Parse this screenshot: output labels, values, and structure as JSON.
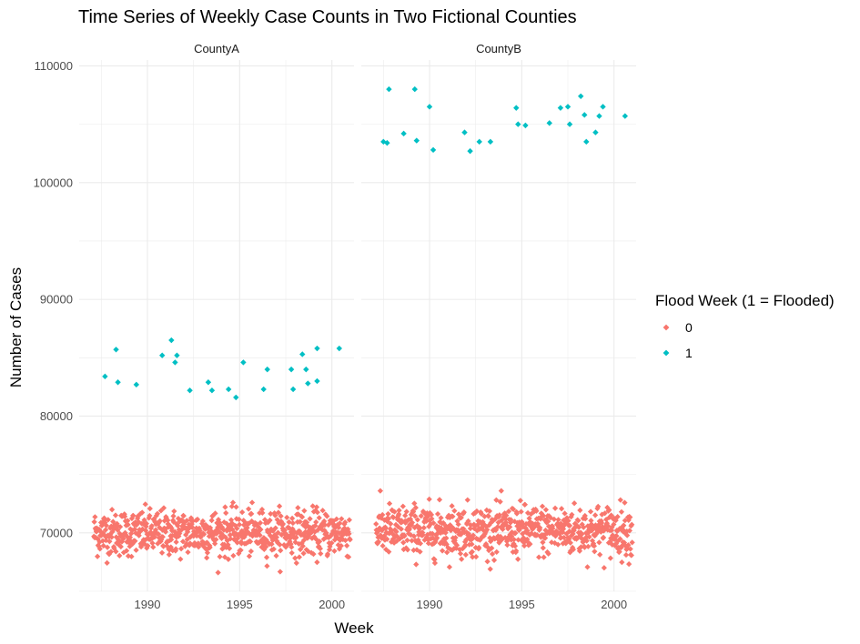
{
  "chart_data": {
    "type": "scatter",
    "title": "Time Series of Weekly Case Counts in Two Fictional Counties",
    "xlabel": "Week",
    "ylabel": "Number of Cases",
    "xlim": [
      1986.3,
      2001.2
    ],
    "ylim": [
      65000,
      110500
    ],
    "x_ticks": [
      1990,
      1995,
      2000
    ],
    "x_tick_labels": [
      "1990",
      "1995",
      "2000"
    ],
    "y_ticks": [
      70000,
      80000,
      90000,
      100000,
      110000
    ],
    "y_tick_labels": [
      "70000",
      "80000",
      "90000",
      "100000",
      "110000"
    ],
    "grid": true,
    "facets": [
      "CountyA",
      "CountyB"
    ],
    "legend": {
      "title": "Flood Week (1 = Flooded)",
      "position": "right",
      "entries": [
        {
          "label": "0",
          "color": "#F8766D"
        },
        {
          "label": "1",
          "color": "#00BFC4"
        }
      ]
    },
    "baseline_note": "Non-flooded weeks (0) appear as a dense band of weekly points between approximately 66500 and 73500 cases across 1987-2001 in both counties.",
    "non_flood_band": {
      "CountyA": {
        "x_range": [
          1987.1,
          2001.0
        ],
        "y_range": [
          66600,
          72600
        ],
        "center": 70000
      },
      "CountyB": {
        "x_range": [
          1987.1,
          2001.0
        ],
        "y_range": [
          66900,
          73600
        ],
        "center": 70200
      }
    },
    "flood_points": {
      "CountyA": [
        {
          "x": 1987.7,
          "y": 83400
        },
        {
          "x": 1988.3,
          "y": 85700
        },
        {
          "x": 1988.4,
          "y": 82900
        },
        {
          "x": 1989.4,
          "y": 82700
        },
        {
          "x": 1990.8,
          "y": 85200
        },
        {
          "x": 1991.3,
          "y": 86500
        },
        {
          "x": 1991.5,
          "y": 84600
        },
        {
          "x": 1991.6,
          "y": 85200
        },
        {
          "x": 1992.3,
          "y": 82200
        },
        {
          "x": 1993.3,
          "y": 82900
        },
        {
          "x": 1993.5,
          "y": 82200
        },
        {
          "x": 1994.4,
          "y": 82300
        },
        {
          "x": 1994.8,
          "y": 81600
        },
        {
          "x": 1995.2,
          "y": 84600
        },
        {
          "x": 1996.3,
          "y": 82300
        },
        {
          "x": 1996.5,
          "y": 84000
        },
        {
          "x": 1997.8,
          "y": 84000
        },
        {
          "x": 1997.9,
          "y": 82300
        },
        {
          "x": 1998.4,
          "y": 85300
        },
        {
          "x": 1998.6,
          "y": 84000
        },
        {
          "x": 1998.7,
          "y": 82800
        },
        {
          "x": 1999.2,
          "y": 85800
        },
        {
          "x": 1999.2,
          "y": 83000
        },
        {
          "x": 2000.4,
          "y": 85800
        }
      ],
      "CountyB": [
        {
          "x": 1987.5,
          "y": 103500
        },
        {
          "x": 1987.7,
          "y": 103400
        },
        {
          "x": 1987.8,
          "y": 108000
        },
        {
          "x": 1988.6,
          "y": 104200
        },
        {
          "x": 1989.2,
          "y": 108000
        },
        {
          "x": 1989.3,
          "y": 103600
        },
        {
          "x": 1990.0,
          "y": 106500
        },
        {
          "x": 1990.2,
          "y": 102800
        },
        {
          "x": 1991.9,
          "y": 104300
        },
        {
          "x": 1992.2,
          "y": 102700
        },
        {
          "x": 1992.7,
          "y": 103500
        },
        {
          "x": 1993.3,
          "y": 103500
        },
        {
          "x": 1994.7,
          "y": 106400
        },
        {
          "x": 1994.8,
          "y": 105000
        },
        {
          "x": 1995.2,
          "y": 104900
        },
        {
          "x": 1996.5,
          "y": 105100
        },
        {
          "x": 1997.1,
          "y": 106400
        },
        {
          "x": 1997.5,
          "y": 106500
        },
        {
          "x": 1997.6,
          "y": 105000
        },
        {
          "x": 1998.2,
          "y": 107400
        },
        {
          "x": 1998.4,
          "y": 105800
        },
        {
          "x": 1998.5,
          "y": 103500
        },
        {
          "x": 1999.0,
          "y": 104300
        },
        {
          "x": 1999.2,
          "y": 105700
        },
        {
          "x": 1999.4,
          "y": 106500
        },
        {
          "x": 2000.6,
          "y": 105700
        }
      ]
    }
  }
}
